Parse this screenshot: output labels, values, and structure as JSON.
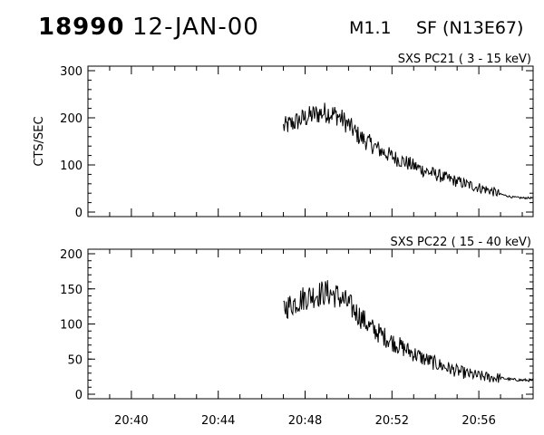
{
  "header": {
    "id": "18990",
    "date": "12-JAN-00",
    "flare_class": "M1.1",
    "location": "SF (N13E67)"
  },
  "chart_data": [
    {
      "type": "line",
      "title": "SXS PC21  (  3 - 15 keV)",
      "ylabel": "CTS/SEC",
      "xlabel": "",
      "xlim": [
        "20:38",
        "20:58:30"
      ],
      "ylim": [
        0,
        300
      ],
      "yticks": [
        0,
        100,
        200,
        300
      ],
      "xticks": [
        "20:40",
        "20:44",
        "20:48",
        "20:52",
        "20:56"
      ],
      "grid": false,
      "series": [
        {
          "x": [
            "20:47:00",
            "20:47:30",
            "20:48:00",
            "20:48:30",
            "20:49:00",
            "20:49:30",
            "20:50:00",
            "20:50:30",
            "20:51:00",
            "20:51:30",
            "20:52:00",
            "20:52:30",
            "20:53:00",
            "20:53:30",
            "20:54:00",
            "20:54:30",
            "20:55:00",
            "20:55:30",
            "20:56:00",
            "20:56:30",
            "20:57:00",
            "20:57:30",
            "20:58:00",
            "20:58:30"
          ],
          "values": [
            180,
            190,
            200,
            208,
            212,
            205,
            185,
            160,
            145,
            130,
            118,
            108,
            98,
            88,
            80,
            72,
            65,
            58,
            52,
            46,
            38,
            32,
            30,
            30
          ]
        }
      ]
    },
    {
      "type": "line",
      "title": "SXS PC22  ( 15 - 40 keV)",
      "ylabel": "",
      "xlabel": "",
      "xlim": [
        "20:38",
        "20:58:30"
      ],
      "ylim": [
        0,
        200
      ],
      "yticks": [
        0,
        50,
        100,
        150,
        200
      ],
      "xticks": [
        "20:40",
        "20:44",
        "20:48",
        "20:52",
        "20:56"
      ],
      "grid": false,
      "series": [
        {
          "x": [
            "20:47:00",
            "20:47:30",
            "20:48:00",
            "20:48:30",
            "20:49:00",
            "20:49:30",
            "20:50:00",
            "20:50:30",
            "20:51:00",
            "20:51:30",
            "20:52:00",
            "20:52:30",
            "20:53:00",
            "20:53:30",
            "20:54:00",
            "20:54:30",
            "20:55:00",
            "20:55:30",
            "20:56:00",
            "20:56:30",
            "20:57:00",
            "20:57:30",
            "20:58:00",
            "20:58:30"
          ],
          "values": [
            122,
            130,
            138,
            142,
            145,
            140,
            128,
            112,
            95,
            85,
            75,
            66,
            58,
            50,
            44,
            38,
            33,
            29,
            26,
            24,
            23,
            21,
            20,
            20
          ]
        }
      ]
    }
  ]
}
